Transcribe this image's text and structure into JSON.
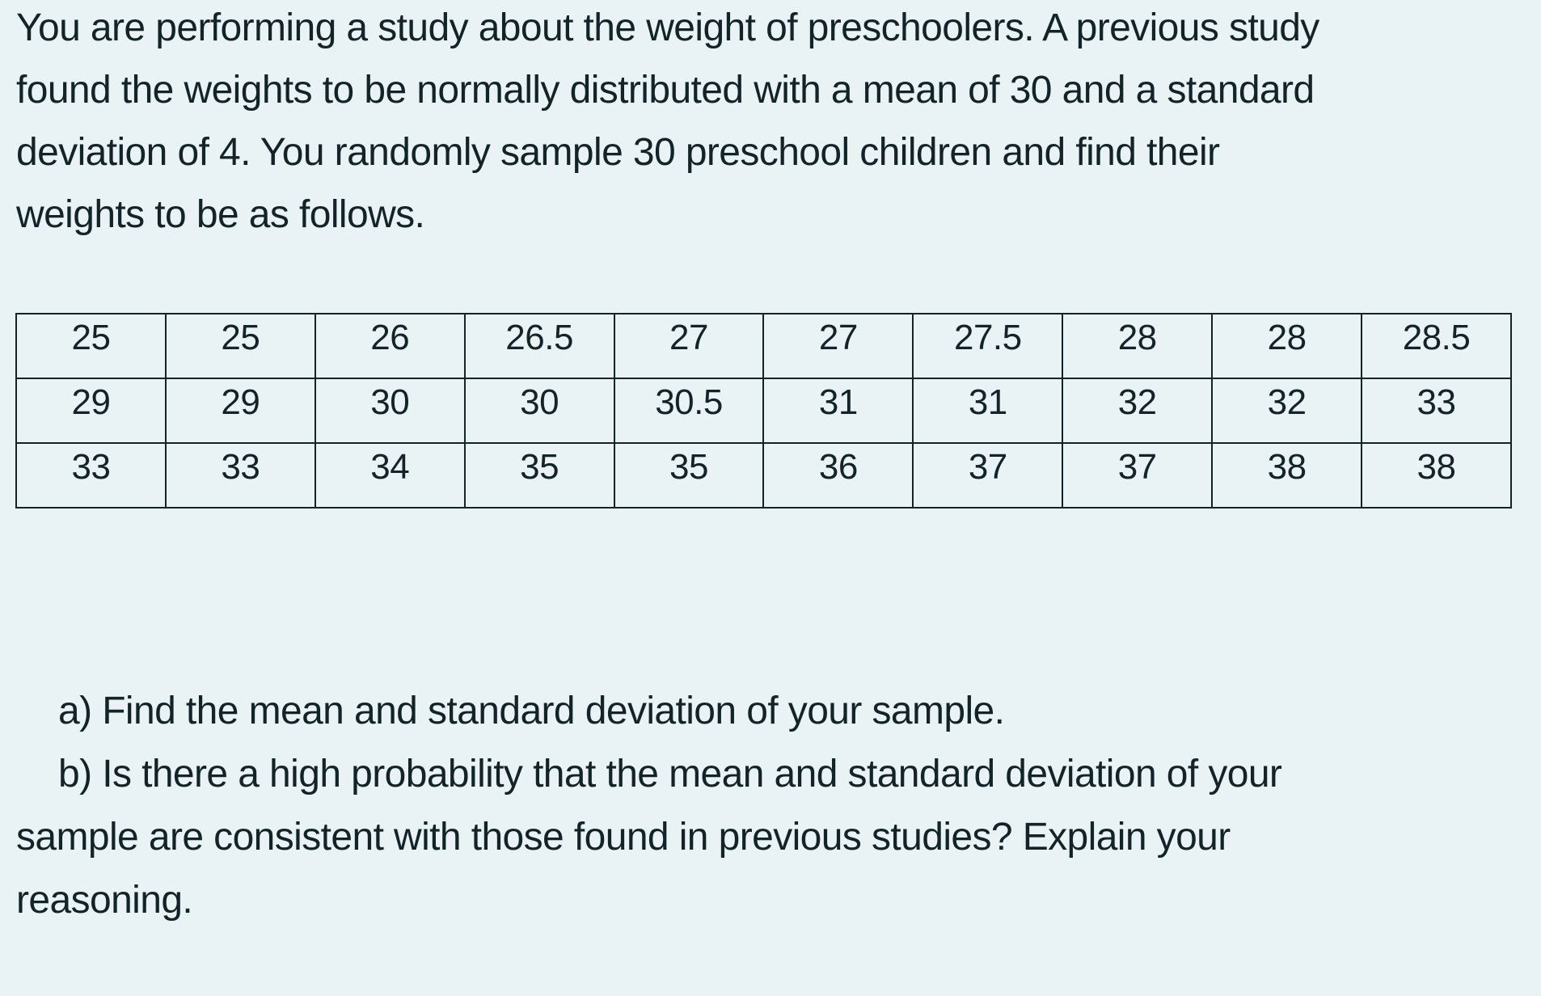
{
  "page": {
    "background_color": "#e9f2f5",
    "text_color": "#132429",
    "table_border_color": "#132429"
  },
  "intro": {
    "full_text": "You are performing a study about the weight of preschoolers. A previous study found the weights to be normally distributed with a mean of 30 and a standard deviation of 4. You randomly sample 30 preschool children and find their weights to be as follows.",
    "lines": [
      {
        "text": "You are performing a study about the weight of preschoolers. A previous study",
        "indent": false
      },
      {
        "text": "found the weights to be normally distributed with a mean of 30 and a standard",
        "indent": false
      },
      {
        "text": "deviation of 4. You randomly sample 30 preschool children and find their",
        "indent": false
      },
      {
        "text": "weights to be as follows.",
        "indent": false
      }
    ]
  },
  "table": {
    "rows": [
      [
        "25",
        "25",
        "26",
        "26.5",
        "27",
        "27",
        "27.5",
        "28",
        "28",
        "28.5"
      ],
      [
        "29",
        "29",
        "30",
        "30",
        "30.5",
        "31",
        "31",
        "32",
        "32",
        "33"
      ],
      [
        "33",
        "33",
        "34",
        "35",
        "35",
        "36",
        "37",
        "37",
        "38",
        "38"
      ]
    ]
  },
  "questions": {
    "full_text_a": "a) Find the mean and standard deviation of your sample.",
    "full_text_b": "b) Is there a high probability that the mean and standard deviation of your sample are consistent with those found in previous studies? Explain your reasoning.",
    "lines": [
      {
        "text": "a) Find the mean and standard deviation of your sample.",
        "indent": true
      },
      {
        "text": "b) Is there a high probability that the mean and standard deviation of your",
        "indent": true
      },
      {
        "text": "sample are consistent with those found in previous studies? Explain your",
        "indent": false
      },
      {
        "text": "reasoning.",
        "indent": false
      }
    ]
  }
}
